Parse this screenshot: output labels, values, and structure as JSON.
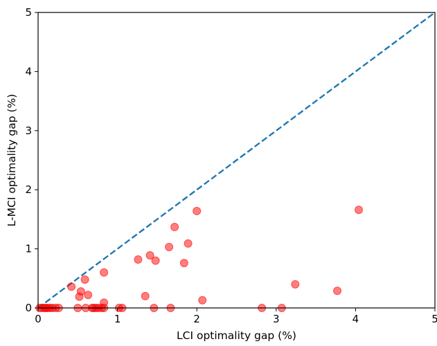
{
  "chart_data": {
    "type": "scatter",
    "title": "",
    "xlabel": "LCI optimality gap (%)",
    "ylabel": "L-MCI optimality gap (%)",
    "xlim": [
      0,
      5
    ],
    "ylim": [
      0,
      5
    ],
    "xticks": [
      "0",
      "1",
      "2",
      "3",
      "4",
      "5"
    ],
    "yticks": [
      "0",
      "1",
      "2",
      "3",
      "4",
      "5"
    ],
    "grid": false,
    "legend": "none",
    "reference_line": {
      "style": "dashed",
      "color": "#1f77b4",
      "from": [
        0,
        0
      ],
      "to": [
        5,
        5
      ]
    },
    "marker_color": "#ff0000",
    "marker_alpha": 0.5,
    "points": [
      [
        0.02,
        0.0
      ],
      [
        0.05,
        0.0
      ],
      [
        0.08,
        0.0
      ],
      [
        0.1,
        0.0
      ],
      [
        0.12,
        0.0
      ],
      [
        0.15,
        0.0
      ],
      [
        0.18,
        0.0
      ],
      [
        0.22,
        0.0
      ],
      [
        0.26,
        0.0
      ],
      [
        0.42,
        0.36
      ],
      [
        0.5,
        0.0
      ],
      [
        0.52,
        0.19
      ],
      [
        0.54,
        0.28
      ],
      [
        0.59,
        0.48
      ],
      [
        0.6,
        0.0
      ],
      [
        0.63,
        0.22
      ],
      [
        0.68,
        0.0
      ],
      [
        0.7,
        0.0
      ],
      [
        0.73,
        0.0
      ],
      [
        0.76,
        0.0
      ],
      [
        0.8,
        0.0
      ],
      [
        0.83,
        0.09
      ],
      [
        0.83,
        0.6
      ],
      [
        0.83,
        0.0
      ],
      [
        1.02,
        0.0
      ],
      [
        1.06,
        0.0
      ],
      [
        1.26,
        0.82
      ],
      [
        1.35,
        0.2
      ],
      [
        1.41,
        0.89
      ],
      [
        1.46,
        0.0
      ],
      [
        1.48,
        0.8
      ],
      [
        1.65,
        1.03
      ],
      [
        1.67,
        0.0
      ],
      [
        1.72,
        1.37
      ],
      [
        1.84,
        0.76
      ],
      [
        1.89,
        1.09
      ],
      [
        2.0,
        1.64
      ],
      [
        2.07,
        0.13
      ],
      [
        2.82,
        0.0
      ],
      [
        3.07,
        0.0
      ],
      [
        3.24,
        0.4
      ],
      [
        3.77,
        0.29
      ],
      [
        4.04,
        1.66
      ]
    ]
  }
}
